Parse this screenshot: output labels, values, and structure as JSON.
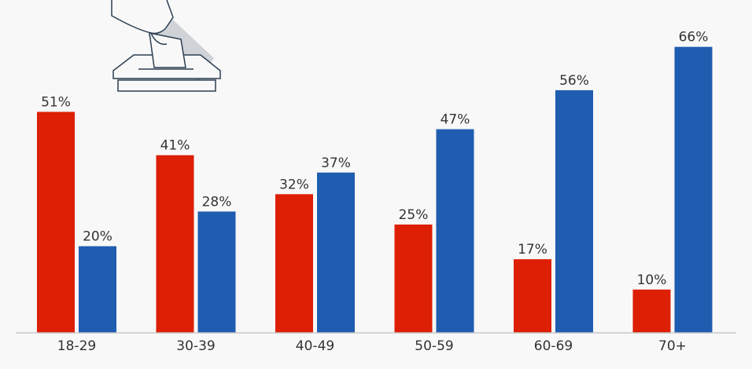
{
  "chart_data": {
    "type": "bar",
    "title": "",
    "xlabel": "",
    "ylabel": "",
    "categories": [
      "18-29",
      "30-39",
      "40-49",
      "50-59",
      "60-69",
      "70+"
    ],
    "series": [
      {
        "values": [
          51,
          41,
          32,
          25,
          17,
          10
        ],
        "color": "#dd1f05"
      },
      {
        "values": [
          20,
          28,
          37,
          47,
          56,
          66
        ],
        "color": "#1f5db0"
      }
    ],
    "value_suffix": "%",
    "ylim": [
      0,
      70
    ],
    "grid": false,
    "legend": "none"
  },
  "illustration": {
    "icon": "ballot-box-icon"
  }
}
